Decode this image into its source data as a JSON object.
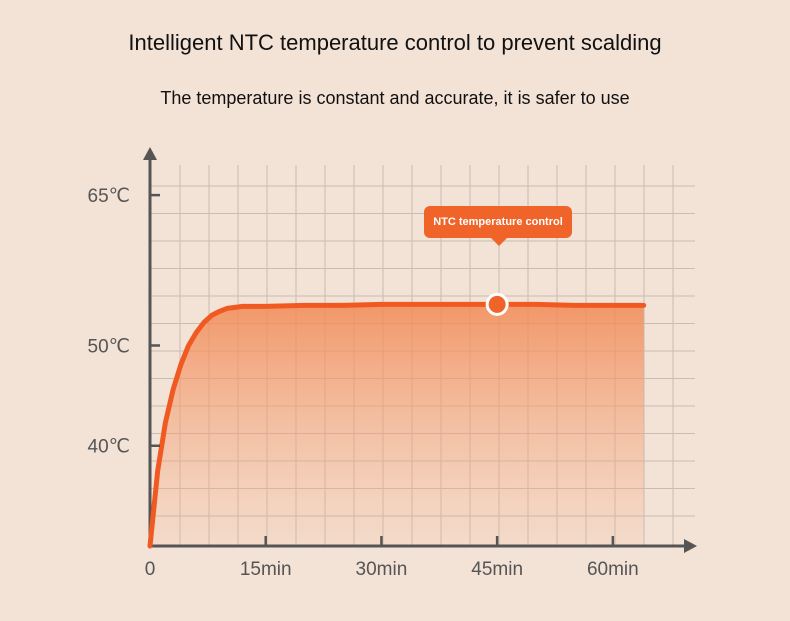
{
  "title": "Intelligent NTC temperature control to prevent scalding",
  "subtitle": "The temperature is constant and accurate, it is safer to use",
  "colors": {
    "background": "#f3e2d6",
    "curve": "#f05a22",
    "accent": "#f0642a",
    "axis": "#555555",
    "grid": "#c9bcb2"
  },
  "chart_data": {
    "type": "line",
    "title": "",
    "xlabel": "",
    "ylabel": "",
    "xlim": [
      0,
      70
    ],
    "ylim": [
      30,
      69
    ],
    "x_ticks": [
      0,
      15,
      30,
      45,
      60
    ],
    "x_tick_labels": [
      "0",
      "15min",
      "30min",
      "45min",
      "60min"
    ],
    "y_ticks": [
      40,
      50,
      65
    ],
    "y_tick_labels": [
      "40℃",
      "50℃",
      "65℃"
    ],
    "grid": true,
    "series": [
      {
        "x": [
          0,
          1,
          2,
          3,
          4,
          5,
          6,
          7,
          8,
          9,
          10,
          11,
          12,
          15,
          20,
          25,
          30,
          35,
          40,
          45,
          50,
          55,
          60,
          64
        ],
        "y": [
          30,
          37.5,
          42.3,
          45.6,
          48.1,
          50.0,
          51.3,
          52.3,
          53.0,
          53.4,
          53.7,
          53.8,
          53.9,
          53.9,
          54.0,
          54.0,
          54.1,
          54.1,
          54.1,
          54.1,
          54.1,
          54.0,
          54.0,
          54.0
        ]
      }
    ],
    "annotation": {
      "label": "NTC temperature control",
      "x": 45,
      "y": 54.1
    }
  }
}
